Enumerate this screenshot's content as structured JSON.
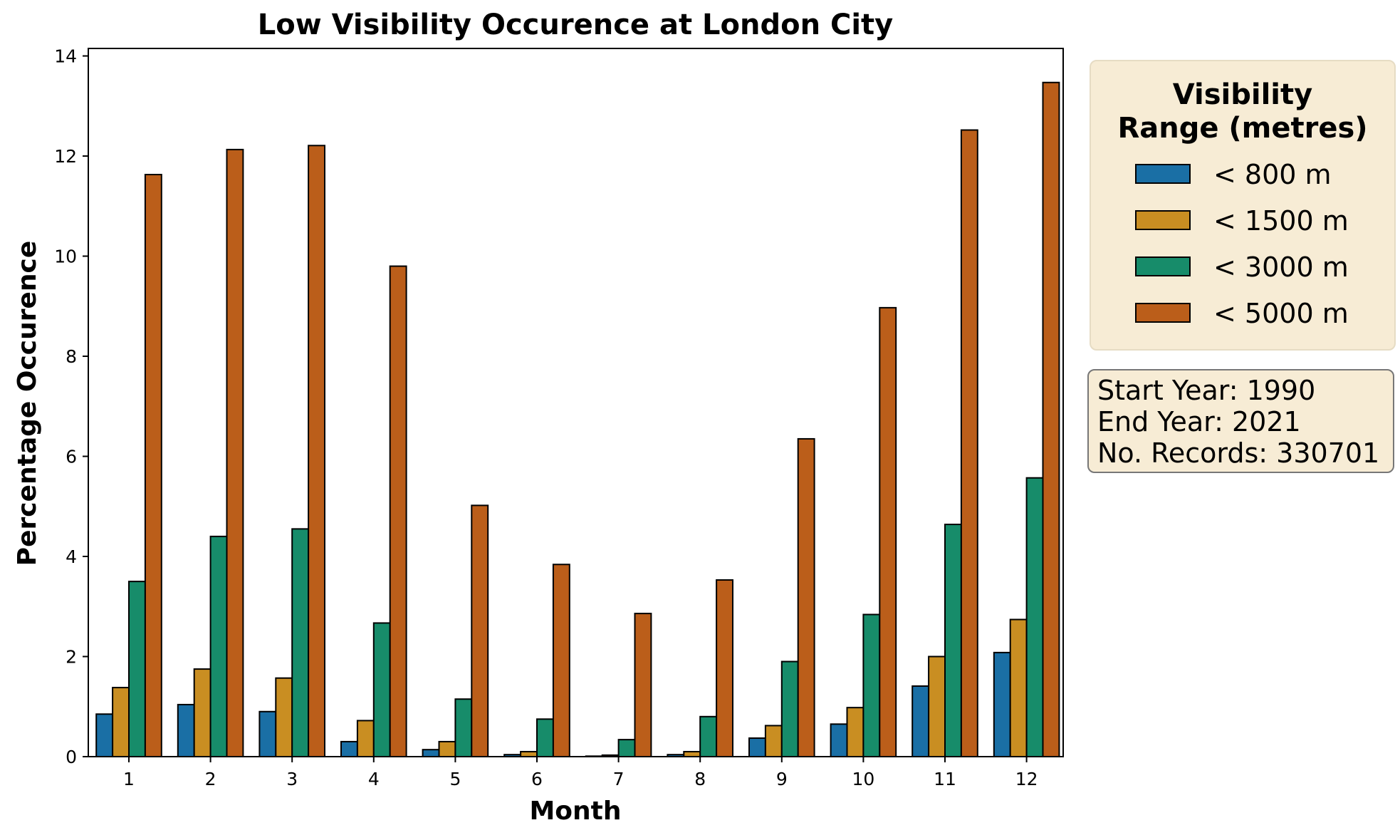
{
  "chart_data": {
    "type": "bar",
    "title": "Low Visibility Occurence at London City",
    "xlabel": "Month",
    "ylabel": "Percentage Occurence",
    "ylim": [
      0,
      14.15
    ],
    "yticks": [
      0,
      2,
      4,
      6,
      8,
      10,
      12,
      14
    ],
    "categories": [
      "1",
      "2",
      "3",
      "4",
      "5",
      "6",
      "7",
      "8",
      "9",
      "10",
      "11",
      "12"
    ],
    "series": [
      {
        "name": "< 800 m",
        "color": "#1a6fa5",
        "values": [
          0.85,
          1.04,
          0.9,
          0.3,
          0.14,
          0.04,
          0.01,
          0.04,
          0.37,
          0.65,
          1.41,
          2.08
        ]
      },
      {
        "name": "< 1500 m",
        "color": "#c98e22",
        "values": [
          1.38,
          1.75,
          1.57,
          0.72,
          0.3,
          0.1,
          0.03,
          0.1,
          0.62,
          0.98,
          2.0,
          2.74
        ]
      },
      {
        "name": "< 3000 m",
        "color": "#178c6a",
        "values": [
          3.5,
          4.4,
          4.55,
          2.67,
          1.15,
          0.75,
          0.34,
          0.8,
          1.9,
          2.84,
          4.64,
          5.57
        ]
      },
      {
        "name": "< 5000 m",
        "color": "#bb5e1a",
        "values": [
          11.63,
          12.13,
          12.21,
          9.8,
          5.02,
          3.84,
          2.86,
          3.53,
          6.35,
          8.97,
          12.52,
          13.47
        ]
      }
    ],
    "legend": {
      "title": "Visibility\nRange (metres)",
      "placement": "outside-right"
    },
    "grid": false
  },
  "info_box": {
    "lines": [
      "Start Year: 1990",
      "End Year: 2021",
      "No. Records: 330701"
    ]
  }
}
